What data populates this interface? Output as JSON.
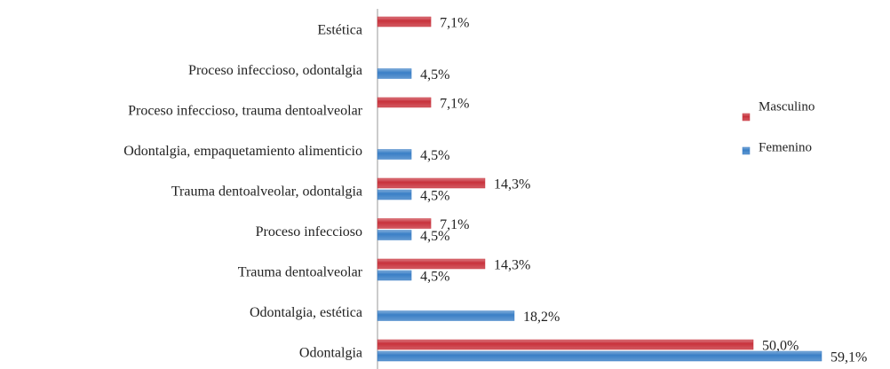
{
  "chart_data": {
    "type": "bar",
    "orientation": "horizontal",
    "categories": [
      "Estética",
      "Proceso infeccioso,  odontalgia",
      "Proceso infeccioso, trauma  dentoalveolar",
      "Odontalgia, empaquetamiento  alimenticio",
      "Trauma dentoalveolar,  odontalgia",
      "Proceso  infeccioso",
      "Trauma dentoalveolar",
      "Odontalgia, estética",
      "Odontalgia"
    ],
    "series": [
      {
        "name": "Masculino",
        "color": "#c8323c",
        "values": [
          7.1,
          null,
          7.1,
          null,
          14.3,
          7.1,
          14.3,
          null,
          50.0
        ],
        "value_labels": [
          "7,1%",
          null,
          "7,1%",
          null,
          "14,3%",
          "7,1%",
          "14,3%",
          null,
          "50,0%"
        ]
      },
      {
        "name": "Femenino",
        "color": "#3a7fc6",
        "values": [
          null,
          4.5,
          null,
          4.5,
          4.5,
          4.5,
          4.5,
          18.2,
          59.1
        ],
        "value_labels": [
          null,
          "4,5%",
          null,
          "4,5%",
          "4,5%",
          "4,5%",
          "4,5%",
          "18,2%",
          "59,1%"
        ]
      }
    ],
    "legend": "right"
  }
}
